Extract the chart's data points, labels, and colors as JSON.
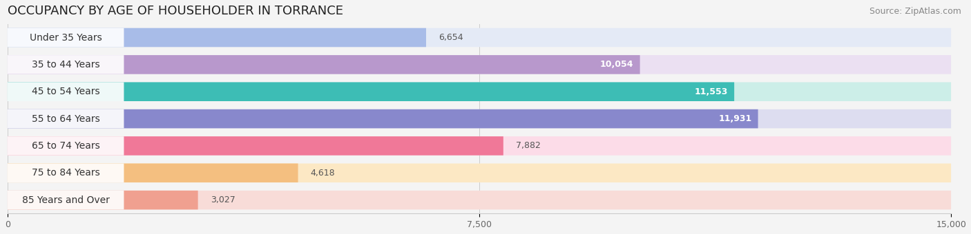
{
  "title": "OCCUPANCY BY AGE OF HOUSEHOLDER IN TORRANCE",
  "source": "Source: ZipAtlas.com",
  "categories": [
    "Under 35 Years",
    "35 to 44 Years",
    "45 to 54 Years",
    "55 to 64 Years",
    "65 to 74 Years",
    "75 to 84 Years",
    "85 Years and Over"
  ],
  "values": [
    6654,
    10054,
    11553,
    11931,
    7882,
    4618,
    3027
  ],
  "bar_colors": [
    "#a8bce8",
    "#b898cc",
    "#3dbdb5",
    "#8888cc",
    "#f07898",
    "#f4bf80",
    "#f0a090"
  ],
  "bar_bg_colors": [
    "#e4eaf6",
    "#ebe0f2",
    "#cceee8",
    "#ddddf0",
    "#fcdce8",
    "#fce8c4",
    "#f8dcd8"
  ],
  "xlim": [
    0,
    15000
  ],
  "xticks": [
    0,
    7500,
    15000
  ],
  "background_color": "#f4f4f4",
  "title_fontsize": 13,
  "source_fontsize": 9,
  "label_fontsize": 10,
  "value_fontsize": 9
}
